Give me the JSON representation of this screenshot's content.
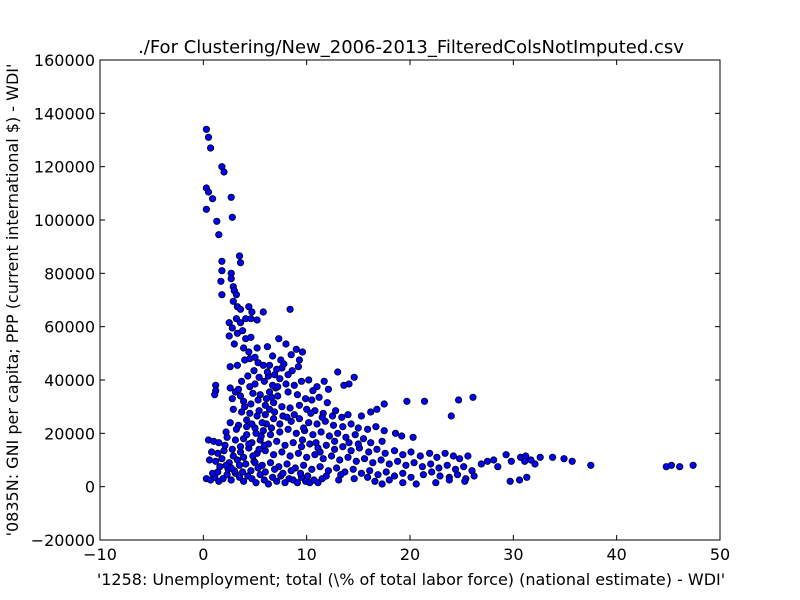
{
  "chart_data": {
    "type": "scatter",
    "title": "./For Clustering/New_2006-2013_FilteredColsNotImputed.csv",
    "xlabel": "'1258: Unemployment; total (\\% of total labor force)  (national estimate) - WDI'",
    "ylabel": "'0835N: GNI per capita; PPP  (current international $) - WDI'",
    "xlim": [
      -10,
      50
    ],
    "ylim": [
      -20000,
      160000
    ],
    "xticks": [
      -10,
      0,
      10,
      20,
      30,
      40,
      50
    ],
    "xtick_labels": [
      "−10",
      "0",
      "10",
      "20",
      "30",
      "40",
      "50"
    ],
    "yticks": [
      -20000,
      0,
      20000,
      40000,
      60000,
      80000,
      100000,
      120000,
      140000,
      160000
    ],
    "ytick_labels": [
      "−20000",
      "0",
      "20000",
      "40000",
      "60000",
      "80000",
      "100000",
      "120000",
      "140000",
      "160000"
    ],
    "grid": false,
    "marker_color": "#0000ff",
    "marker_edge": "#000000",
    "points": [
      [
        0.3,
        134000
      ],
      [
        0.5,
        131000
      ],
      [
        0.7,
        127000
      ],
      [
        0.3,
        112000
      ],
      [
        0.5,
        110500
      ],
      [
        0.9,
        108000
      ],
      [
        0.3,
        104000
      ],
      [
        1.8,
        120000
      ],
      [
        2.0,
        118000
      ],
      [
        2.7,
        108500
      ],
      [
        2.8,
        101000
      ],
      [
        1.3,
        99500
      ],
      [
        1.5,
        94500
      ],
      [
        3.5,
        86500
      ],
      [
        3.6,
        84000
      ],
      [
        1.8,
        84500
      ],
      [
        1.8,
        81000
      ],
      [
        2.7,
        80000
      ],
      [
        2.7,
        78000
      ],
      [
        1.7,
        77000
      ],
      [
        2.9,
        75000
      ],
      [
        3.0,
        73500
      ],
      [
        1.8,
        72000
      ],
      [
        3.2,
        72000
      ],
      [
        2.9,
        69500
      ],
      [
        3.3,
        67500
      ],
      [
        3.6,
        66500
      ],
      [
        4.4,
        67500
      ],
      [
        4.7,
        65500
      ],
      [
        5.8,
        65500
      ],
      [
        8.4,
        66500
      ],
      [
        3.2,
        63000
      ],
      [
        3.6,
        61500
      ],
      [
        4.1,
        63000
      ],
      [
        4.6,
        63000
      ],
      [
        5.2,
        62500
      ],
      [
        2.5,
        61500
      ],
      [
        2.8,
        59500
      ],
      [
        3.3,
        57500
      ],
      [
        3.8,
        58500
      ],
      [
        4.1,
        55500
      ],
      [
        4.6,
        56000
      ],
      [
        2.5,
        56500
      ],
      [
        3.0,
        53500
      ],
      [
        3.9,
        52000
      ],
      [
        4.4,
        50500
      ],
      [
        5.2,
        52000
      ],
      [
        6.2,
        52500
      ],
      [
        7.3,
        55500
      ],
      [
        8.0,
        53500
      ],
      [
        9.0,
        51500
      ],
      [
        9.6,
        50500
      ],
      [
        8.5,
        49500
      ],
      [
        6.7,
        49000
      ],
      [
        7.5,
        47500
      ],
      [
        9.3,
        47500
      ],
      [
        4.0,
        47500
      ],
      [
        4.5,
        48000
      ],
      [
        5.0,
        48500
      ],
      [
        2.6,
        45000
      ],
      [
        3.3,
        45500
      ],
      [
        5.3,
        46500
      ],
      [
        5.8,
        45500
      ],
      [
        6.4,
        45500
      ],
      [
        7.6,
        44500
      ],
      [
        8.6,
        43500
      ],
      [
        9.2,
        45000
      ],
      [
        13.0,
        43000
      ],
      [
        14.6,
        41000
      ],
      [
        14.1,
        38500
      ],
      [
        13.6,
        38000
      ],
      [
        10.2,
        40000
      ],
      [
        11.0,
        37500
      ],
      [
        11.7,
        39500
      ],
      [
        12.1,
        36500
      ],
      [
        10.6,
        36000
      ],
      [
        1.2,
        38000
      ],
      [
        1.2,
        36000
      ],
      [
        1.1,
        34500
      ],
      [
        2.6,
        37000
      ],
      [
        3.1,
        35500
      ],
      [
        3.6,
        34000
      ],
      [
        4.5,
        37500
      ],
      [
        5.0,
        38500
      ],
      [
        5.9,
        39500
      ],
      [
        6.3,
        41500
      ],
      [
        6.9,
        42000
      ],
      [
        7.4,
        40500
      ],
      [
        8.0,
        38500
      ],
      [
        8.8,
        38000
      ],
      [
        9.5,
        39500
      ],
      [
        4.8,
        35000
      ],
      [
        5.5,
        34500
      ],
      [
        6.4,
        35500
      ],
      [
        7.2,
        34000
      ],
      [
        8.2,
        35500
      ],
      [
        9.1,
        34500
      ],
      [
        9.9,
        33000
      ],
      [
        10.5,
        32500
      ],
      [
        11.2,
        33500
      ],
      [
        12.0,
        31500
      ],
      [
        2.8,
        33000
      ],
      [
        3.9,
        32000
      ],
      [
        4.6,
        31000
      ],
      [
        5.3,
        32500
      ],
      [
        6.0,
        30500
      ],
      [
        6.8,
        31500
      ],
      [
        7.6,
        30000
      ],
      [
        8.4,
        29500
      ],
      [
        9.3,
        30500
      ],
      [
        10.0,
        29000
      ],
      [
        10.8,
        28500
      ],
      [
        11.6,
        27500
      ],
      [
        12.5,
        26500
      ],
      [
        13.4,
        26000
      ],
      [
        14.0,
        27000
      ],
      [
        15.3,
        26500
      ],
      [
        16.2,
        28000
      ],
      [
        16.8,
        29000
      ],
      [
        17.5,
        31000
      ],
      [
        19.7,
        32000
      ],
      [
        21.4,
        32000
      ],
      [
        24.0,
        26500
      ],
      [
        24.7,
        32500
      ],
      [
        26.1,
        33500
      ],
      [
        2.9,
        29000
      ],
      [
        3.7,
        28000
      ],
      [
        4.5,
        27500
      ],
      [
        5.2,
        26500
      ],
      [
        6.0,
        27000
      ],
      [
        6.8,
        25500
      ],
      [
        7.7,
        26500
      ],
      [
        8.5,
        24500
      ],
      [
        9.3,
        25500
      ],
      [
        10.2,
        24000
      ],
      [
        11.0,
        23500
      ],
      [
        11.8,
        24500
      ],
      [
        12.6,
        23000
      ],
      [
        13.5,
        22500
      ],
      [
        14.3,
        23500
      ],
      [
        15.0,
        22000
      ],
      [
        15.9,
        21500
      ],
      [
        16.7,
        22500
      ],
      [
        17.5,
        21000
      ],
      [
        18.6,
        20000
      ],
      [
        19.2,
        19000
      ],
      [
        20.3,
        18500
      ],
      [
        17.3,
        17000
      ],
      [
        2.6,
        24000
      ],
      [
        3.4,
        23000
      ],
      [
        4.2,
        22500
      ],
      [
        5.0,
        22000
      ],
      [
        5.8,
        21000
      ],
      [
        6.6,
        22000
      ],
      [
        7.4,
        20500
      ],
      [
        8.2,
        21500
      ],
      [
        9.0,
        20000
      ],
      [
        9.8,
        21000
      ],
      [
        10.6,
        19500
      ],
      [
        11.4,
        20500
      ],
      [
        12.2,
        19000
      ],
      [
        13.0,
        20000
      ],
      [
        13.8,
        18500
      ],
      [
        14.7,
        19500
      ],
      [
        15.5,
        18000
      ],
      [
        0.5,
        17500
      ],
      [
        1.0,
        17000
      ],
      [
        1.5,
        16500
      ],
      [
        2.3,
        18500
      ],
      [
        3.1,
        17500
      ],
      [
        3.9,
        18000
      ],
      [
        4.7,
        16500
      ],
      [
        5.5,
        17500
      ],
      [
        6.3,
        16000
      ],
      [
        7.1,
        17000
      ],
      [
        7.9,
        15500
      ],
      [
        8.7,
        16500
      ],
      [
        9.5,
        15000
      ],
      [
        10.3,
        16000
      ],
      [
        11.1,
        14500
      ],
      [
        11.9,
        15500
      ],
      [
        12.7,
        14000
      ],
      [
        13.5,
        15000
      ],
      [
        14.3,
        13500
      ],
      [
        15.1,
        14500
      ],
      [
        16.0,
        13000
      ],
      [
        16.8,
        14000
      ],
      [
        17.6,
        12500
      ],
      [
        18.5,
        13500
      ],
      [
        19.3,
        12000
      ],
      [
        20.1,
        13000
      ],
      [
        21.0,
        11500
      ],
      [
        21.9,
        12500
      ],
      [
        22.6,
        11000
      ],
      [
        23.4,
        12500
      ],
      [
        24.2,
        11500
      ],
      [
        24.8,
        10500
      ],
      [
        25.6,
        11500
      ],
      [
        0.8,
        13000
      ],
      [
        1.4,
        12500
      ],
      [
        2.0,
        13500
      ],
      [
        2.8,
        14000
      ],
      [
        3.6,
        13000
      ],
      [
        4.4,
        14500
      ],
      [
        5.2,
        12500
      ],
      [
        6.0,
        13500
      ],
      [
        6.8,
        12000
      ],
      [
        7.6,
        13000
      ],
      [
        8.4,
        11500
      ],
      [
        9.2,
        12500
      ],
      [
        10.0,
        11000
      ],
      [
        10.8,
        12000
      ],
      [
        11.6,
        10500
      ],
      [
        12.4,
        11500
      ],
      [
        13.2,
        10000
      ],
      [
        14.0,
        11000
      ],
      [
        14.8,
        9500
      ],
      [
        15.6,
        10500
      ],
      [
        16.4,
        9000
      ],
      [
        17.2,
        10000
      ],
      [
        18.0,
        8500
      ],
      [
        18.8,
        9500
      ],
      [
        19.6,
        8000
      ],
      [
        20.4,
        9000
      ],
      [
        21.2,
        7500
      ],
      [
        22.0,
        8500
      ],
      [
        22.8,
        7000
      ],
      [
        23.6,
        8000
      ],
      [
        24.4,
        6500
      ],
      [
        25.2,
        7500
      ],
      [
        26.0,
        6000
      ],
      [
        26.9,
        8500
      ],
      [
        27.5,
        9500
      ],
      [
        28.1,
        10000
      ],
      [
        28.5,
        7500
      ],
      [
        29.3,
        12000
      ],
      [
        29.8,
        9500
      ],
      [
        30.7,
        11000
      ],
      [
        31.2,
        11500
      ],
      [
        31.1,
        9500
      ],
      [
        31.7,
        10000
      ],
      [
        32.1,
        8500
      ],
      [
        32.6,
        11000
      ],
      [
        33.8,
        11000
      ],
      [
        34.9,
        10500
      ],
      [
        35.7,
        9500
      ],
      [
        37.5,
        8000
      ],
      [
        44.8,
        7500
      ],
      [
        45.3,
        8000
      ],
      [
        46.1,
        7500
      ],
      [
        47.4,
        8000
      ],
      [
        0.6,
        10000
      ],
      [
        1.2,
        9500
      ],
      [
        1.8,
        10500
      ],
      [
        2.5,
        9000
      ],
      [
        3.3,
        10000
      ],
      [
        4.1,
        8500
      ],
      [
        4.9,
        9500
      ],
      [
        5.7,
        8000
      ],
      [
        6.5,
        9000
      ],
      [
        7.3,
        7500
      ],
      [
        8.1,
        8500
      ],
      [
        8.9,
        7000
      ],
      [
        9.7,
        8000
      ],
      [
        10.5,
        6500
      ],
      [
        11.3,
        7500
      ],
      [
        12.1,
        6000
      ],
      [
        12.9,
        7000
      ],
      [
        13.7,
        5500
      ],
      [
        14.5,
        6500
      ],
      [
        15.3,
        5000
      ],
      [
        16.1,
        6000
      ],
      [
        16.9,
        4500
      ],
      [
        17.7,
        5500
      ],
      [
        18.5,
        4000
      ],
      [
        19.3,
        5000
      ],
      [
        20.1,
        3500
      ],
      [
        21.3,
        4500
      ],
      [
        22.1,
        5500
      ],
      [
        22.9,
        4000
      ],
      [
        23.8,
        3500
      ],
      [
        24.6,
        4500
      ],
      [
        25.4,
        3000
      ],
      [
        26.2,
        4000
      ],
      [
        0.3,
        3000
      ],
      [
        0.7,
        2500
      ],
      [
        1.1,
        3500
      ],
      [
        1.5,
        2000
      ],
      [
        1.9,
        3000
      ],
      [
        2.3,
        4500
      ],
      [
        2.7,
        2500
      ],
      [
        3.1,
        5000
      ],
      [
        3.5,
        3500
      ],
      [
        3.9,
        2000
      ],
      [
        4.3,
        4000
      ],
      [
        4.7,
        3000
      ],
      [
        5.1,
        1500
      ],
      [
        5.5,
        4500
      ],
      [
        5.9,
        2500
      ],
      [
        6.3,
        1000
      ],
      [
        6.7,
        3500
      ],
      [
        7.1,
        2000
      ],
      [
        7.5,
        4000
      ],
      [
        7.9,
        1500
      ],
      [
        8.3,
        3000
      ],
      [
        8.7,
        2500
      ],
      [
        9.1,
        1500
      ],
      [
        9.5,
        3500
      ],
      [
        9.9,
        2000
      ],
      [
        10.3,
        1500
      ],
      [
        10.7,
        2500
      ],
      [
        11.1,
        1500
      ],
      [
        11.5,
        3000
      ],
      [
        13.1,
        2500
      ],
      [
        14.6,
        3000
      ],
      [
        16.6,
        2000
      ],
      [
        17.3,
        1000
      ],
      [
        18.0,
        2500
      ],
      [
        19.3,
        1500
      ],
      [
        20.6,
        1000
      ],
      [
        22.5,
        1500
      ],
      [
        23.8,
        2500
      ],
      [
        25.3,
        2000
      ],
      [
        29.7,
        2000
      ],
      [
        30.6,
        2500
      ],
      [
        31.3,
        3500
      ],
      [
        5.0,
        9000
      ],
      [
        5.4,
        14000
      ],
      [
        5.6,
        19000
      ],
      [
        6.1,
        23500
      ],
      [
        6.4,
        29000
      ],
      [
        6.6,
        33500
      ],
      [
        7.0,
        37000
      ],
      [
        7.1,
        44000
      ],
      [
        6.2,
        43000
      ],
      [
        5.4,
        41000
      ],
      [
        4.9,
        43500
      ],
      [
        4.3,
        41500
      ],
      [
        3.7,
        39500
      ],
      [
        3.4,
        36500
      ],
      [
        4.0,
        30000
      ],
      [
        4.2,
        25000
      ],
      [
        3.2,
        21500
      ],
      [
        2.2,
        20500
      ],
      [
        2.1,
        15500
      ],
      [
        1.6,
        7500
      ],
      [
        2.4,
        6500
      ],
      [
        3.0,
        6000
      ],
      [
        3.8,
        5500
      ],
      [
        4.6,
        6000
      ],
      [
        5.3,
        7000
      ],
      [
        6.0,
        5500
      ],
      [
        6.9,
        6500
      ],
      [
        7.7,
        5000
      ],
      [
        8.5,
        6000
      ],
      [
        9.4,
        5000
      ],
      [
        10.1,
        4000
      ],
      [
        11.9,
        4000
      ],
      [
        13.3,
        4500
      ],
      [
        15.9,
        3500
      ],
      [
        8.1,
        26000
      ],
      [
        7.4,
        23500
      ],
      [
        6.5,
        19500
      ],
      [
        5.9,
        15500
      ],
      [
        4.8,
        11500
      ],
      [
        3.9,
        11000
      ],
      [
        9.6,
        17500
      ],
      [
        10.9,
        16500
      ],
      [
        11.3,
        13000
      ],
      [
        12.7,
        17000
      ],
      [
        14.1,
        16500
      ],
      [
        15.0,
        16000
      ],
      [
        16.2,
        16500
      ],
      [
        8.8,
        27000
      ],
      [
        9.7,
        22000
      ],
      [
        10.4,
        27500
      ],
      [
        11.5,
        26000
      ],
      [
        12.8,
        28500
      ],
      [
        0.9,
        5000
      ],
      [
        1.4,
        5500
      ],
      [
        2.2,
        8000
      ],
      [
        2.9,
        11500
      ],
      [
        3.6,
        15000
      ],
      [
        4.2,
        19500
      ],
      [
        4.7,
        23500
      ],
      [
        5.4,
        28500
      ],
      [
        6.1,
        33000
      ],
      [
        6.7,
        38000
      ],
      [
        7.8,
        46000
      ],
      [
        8.2,
        42000
      ],
      [
        7.2,
        37500
      ],
      [
        6.9,
        28000
      ],
      [
        5.7,
        24000
      ],
      [
        5.1,
        20000
      ],
      [
        4.4,
        16000
      ],
      [
        3.5,
        8000
      ],
      [
        2.7,
        7000
      ]
    ]
  }
}
